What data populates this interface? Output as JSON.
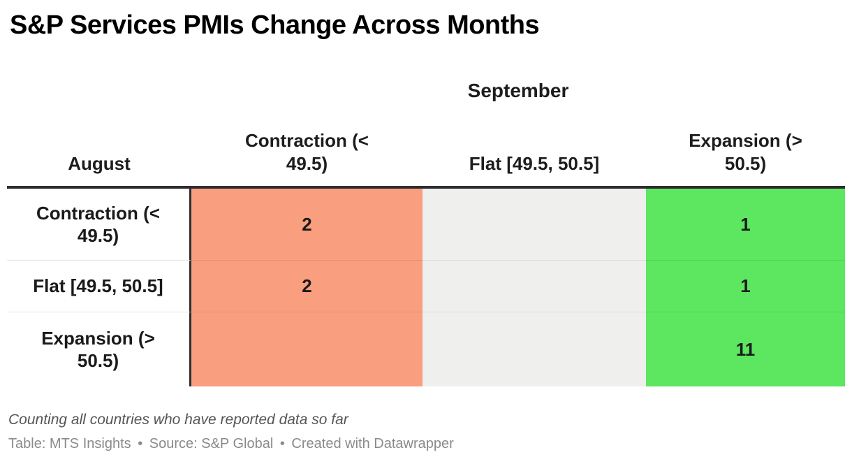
{
  "colors": {
    "contraction_fill": "#fa9e80",
    "flat_fill": "#efefee",
    "expansion_fill": "#5de65f",
    "header_border": "#2e2e2e",
    "note_text": "#555555",
    "attribution_text": "#8a8a8a"
  },
  "header": {
    "title": "S&P Services PMIs Change Across Months"
  },
  "table": {
    "col_group_title": "September",
    "row_group_title": "August",
    "columns": [
      "Contraction (<\n49.5)",
      "Flat [49.5, 50.5]",
      "Expansion (>\n50.5)"
    ],
    "rows": [
      {
        "label": "Contraction (<\n49.5)",
        "values": [
          "2",
          "",
          "1"
        ]
      },
      {
        "label": "Flat [49.5, 50.5]",
        "values": [
          "2",
          "",
          "1"
        ]
      },
      {
        "label": "Expansion (>\n50.5)",
        "values": [
          "",
          "",
          "11"
        ]
      }
    ]
  },
  "footer": {
    "note": "Counting all countries who have reported data so far",
    "attribution": {
      "table_label": "Table: MTS Insights",
      "source_label": "Source: S&P Global",
      "created_label": "Created with Datawrapper",
      "separator": "•"
    }
  },
  "chart_data": {
    "type": "table",
    "title": "S&P Services PMIs Change Across Months",
    "row_axis": "August",
    "col_axis": "September",
    "columns": [
      "Contraction (< 49.5)",
      "Flat [49.5, 50.5]",
      "Expansion (> 50.5)"
    ],
    "rows": [
      "Contraction (< 49.5)",
      "Flat [49.5, 50.5]",
      "Expansion (> 50.5)"
    ],
    "values": [
      [
        2,
        null,
        1
      ],
      [
        2,
        null,
        1
      ],
      [
        null,
        null,
        11
      ]
    ],
    "column_fill_colors": [
      "#fa9e80",
      "#efefee",
      "#5de65f"
    ],
    "note": "Counting all countries who have reported data so far"
  }
}
